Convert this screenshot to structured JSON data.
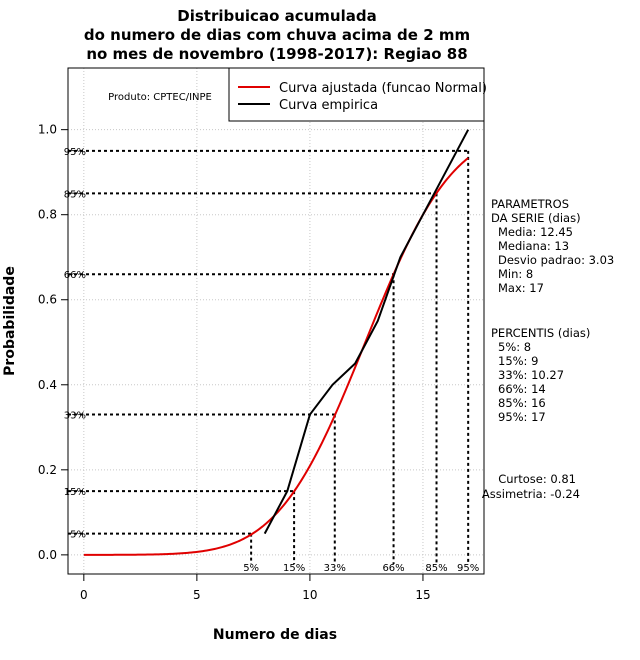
{
  "chart_data": {
    "type": "line",
    "title_lines": [
      "Distribuicao acumulada",
      "do numero de dias com chuva acima de 2 mm",
      "no mes de novembro (1998-2017): Regiao 88"
    ],
    "xlabel": "Numero de dias",
    "ylabel": "Probabilidade",
    "xlim": [
      -0.7,
      17.7
    ],
    "ylim": [
      -0.045,
      1.145
    ],
    "x_ticks": [
      0,
      5,
      10,
      15
    ],
    "y_ticks": [
      0.0,
      0.2,
      0.4,
      0.6,
      0.8,
      1.0
    ],
    "x_tick_labels": [
      "0",
      "5",
      "10",
      "15"
    ],
    "y_tick_labels": [
      "0.0",
      "0.2",
      "0.4",
      "0.6",
      "0.8",
      "1.0"
    ],
    "grid": true,
    "product_label": "Produto: CPTEC/INPE",
    "legend": {
      "position": "top-right",
      "entries": [
        {
          "label": "Curva ajustada (funcao Normal)",
          "color": "#e00000"
        },
        {
          "label": "Curva empirica",
          "color": "#000000"
        }
      ]
    },
    "normal_fit": {
      "mean": 12.45,
      "sd": 3.03,
      "x_range": [
        0,
        17
      ],
      "color": "#e00000"
    },
    "empirical": {
      "x": [
        8,
        9,
        10,
        11,
        12,
        13,
        14,
        15,
        16,
        17
      ],
      "y": [
        0.05,
        0.15,
        0.33,
        0.4,
        0.45,
        0.55,
        0.7,
        0.8,
        0.9,
        1.0
      ],
      "color": "#000000"
    },
    "percentiles": [
      {
        "label": "5%",
        "p": 0.05,
        "x": 7.4
      },
      {
        "label": "15%",
        "p": 0.15,
        "x": 9.3
      },
      {
        "label": "33%",
        "p": 0.33,
        "x": 11.1
      },
      {
        "label": "66%",
        "p": 0.66,
        "x": 13.7
      },
      {
        "label": "85%",
        "p": 0.85,
        "x": 15.6
      },
      {
        "label": "95%",
        "p": 0.95,
        "x": 17.0
      }
    ],
    "params_title": [
      "PARAMETROS",
      "DA SERIE (dias)"
    ],
    "params": [
      "Media: 12.45",
      "Mediana: 13",
      "Desvio padrao: 3.03",
      "Min: 8",
      "Max: 17"
    ],
    "percentis_title": "PERCENTIS (dias)",
    "percentis": [
      "5%: 8",
      "15%: 9",
      "33%: 10.27",
      "66%: 14",
      "85%: 16",
      "95%: 17"
    ],
    "curtose": "Curtose: 0.81",
    "assimetria": "Assimetria: -0.24"
  }
}
